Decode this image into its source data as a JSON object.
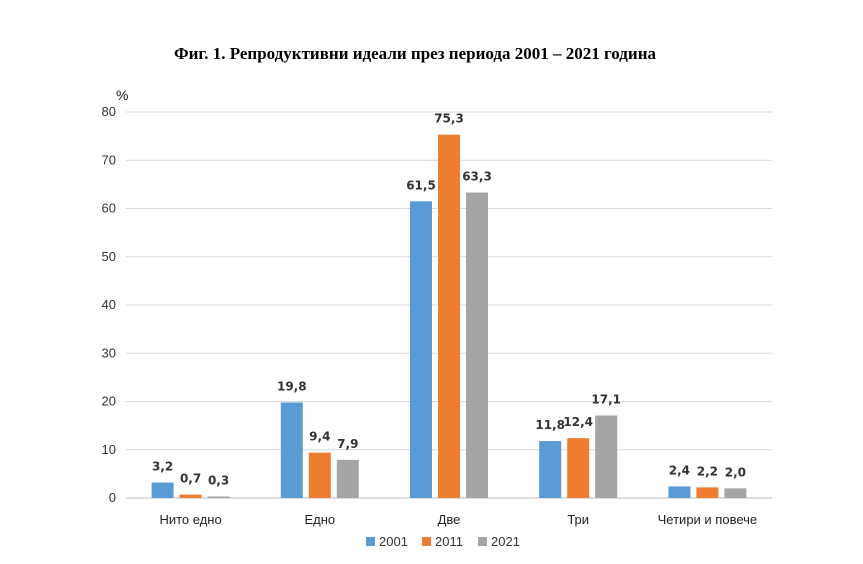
{
  "figure": {
    "title": "Фиг. 1. Репродуктивни идеали през периода 2001 – 2021 година",
    "unit_label": "%"
  },
  "chart_data": {
    "type": "bar",
    "title": "Фиг. 1. Репродуктивни идеали през периода 2001 – 2021 година",
    "ylabel": "%",
    "xlabel": "",
    "ylim": [
      0,
      80
    ],
    "yticks": [
      0,
      10,
      20,
      30,
      40,
      50,
      60,
      70,
      80
    ],
    "grid": true,
    "legend_position": "bottom",
    "categories": [
      "Нито едно",
      "Едно",
      "Две",
      "Три",
      "Четири и повече"
    ],
    "series": [
      {
        "name": "2001",
        "color": "#5b9bd5",
        "values": [
          3.2,
          19.8,
          61.5,
          11.8,
          2.4
        ],
        "labels": [
          "3,2",
          "19,8",
          "61,5",
          "11,8",
          "2,4"
        ]
      },
      {
        "name": "2011",
        "color": "#ed7d31",
        "values": [
          0.7,
          9.4,
          75.3,
          12.4,
          2.2
        ],
        "labels": [
          "0,7",
          "9,4",
          "75,3",
          "12,4",
          "2,2"
        ]
      },
      {
        "name": "2021",
        "color": "#a5a5a5",
        "values": [
          0.3,
          7.9,
          63.3,
          17.1,
          2.0
        ],
        "labels": [
          "0,3",
          "7,9",
          "63,3",
          "17,1",
          "2,0"
        ]
      }
    ]
  }
}
